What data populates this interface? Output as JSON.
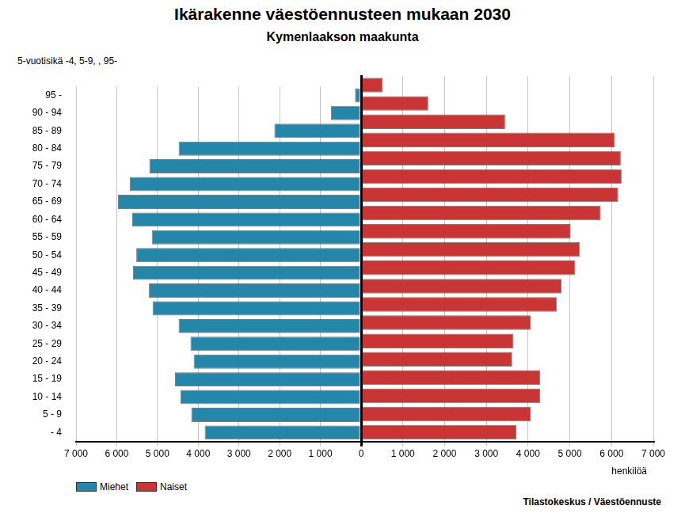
{
  "chart_data": {
    "type": "bar",
    "orientation": "horizontal",
    "title": "Ikärakenne väestöennusteen mukaan 2030",
    "subtitle": "Kymenlaakson maakunta",
    "y_label": "5-vuotisikä -4, 5-9, , 95-",
    "x_label": "henkilöä",
    "source": "Tilastokeskus / Väestöennuste",
    "categories": [
      "95 -",
      "90 - 94",
      "85 - 89",
      "80 - 84",
      "75 - 79",
      "70 - 74",
      "65 - 69",
      "60 - 64",
      "55 - 59",
      "50 - 54",
      "45 - 49",
      "40 - 44",
      "35 - 39",
      "30 - 34",
      "25 - 29",
      "20 - 24",
      "15 - 19",
      "10 - 14",
      "5 - 9",
      "- 4"
    ],
    "series": [
      {
        "name": "Miehet",
        "color": "#2486a8",
        "values": [
          150,
          740,
          2130,
          4480,
          5200,
          5680,
          5970,
          5620,
          5140,
          5520,
          5600,
          5210,
          5120,
          4480,
          4190,
          4110,
          4570,
          4440,
          4170,
          3840
        ]
      },
      {
        "name": "Naiset",
        "color": "#c93535",
        "values": [
          520,
          1610,
          3450,
          6080,
          6220,
          6240,
          6160,
          5740,
          5020,
          5240,
          5130,
          4800,
          4690,
          4060,
          3650,
          3620,
          4290,
          4290,
          4060,
          3720
        ]
      }
    ],
    "xlim": [
      0,
      7000
    ],
    "xticks": [
      0,
      {
        "value": 1000,
        "label": "1 000"
      },
      {
        "value": 2000,
        "label": "2 000"
      },
      {
        "value": 3000,
        "label": "3 000"
      },
      {
        "value": 4000,
        "label": "4 000"
      },
      {
        "value": 5000,
        "label": "5 000"
      },
      {
        "value": 6000,
        "label": "6 000"
      },
      {
        "value": 7000,
        "label": "7 000"
      }
    ],
    "grid": true,
    "legend": "bottom"
  }
}
